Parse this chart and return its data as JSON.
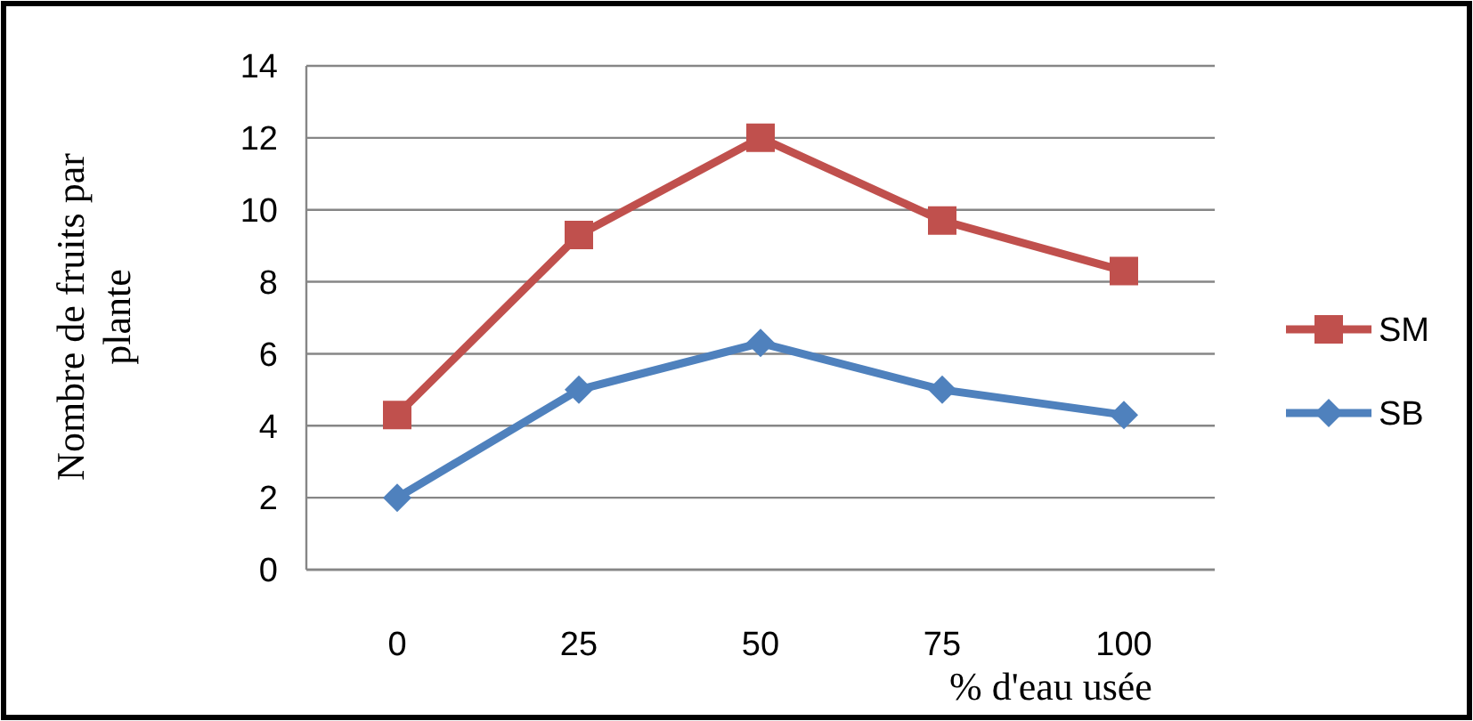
{
  "chart_data": {
    "type": "line",
    "xlabel": "% d'eau usée",
    "ylabel": "Nombre de fruits par plante",
    "categories": [
      "0",
      "25",
      "50",
      "75",
      "100"
    ],
    "series": [
      {
        "name": "SM",
        "color": "#c0504d",
        "marker": "square",
        "values": [
          4.3,
          9.3,
          12,
          9.7,
          8.3
        ]
      },
      {
        "name": "SB",
        "color": "#4f81bd",
        "marker": "diamond",
        "values": [
          2,
          5,
          6.3,
          5,
          4.3
        ]
      }
    ],
    "ylim": [
      0,
      14
    ],
    "yticks": [
      0,
      2,
      4,
      6,
      8,
      10,
      12,
      14
    ],
    "grid": "y",
    "legend": "right"
  }
}
